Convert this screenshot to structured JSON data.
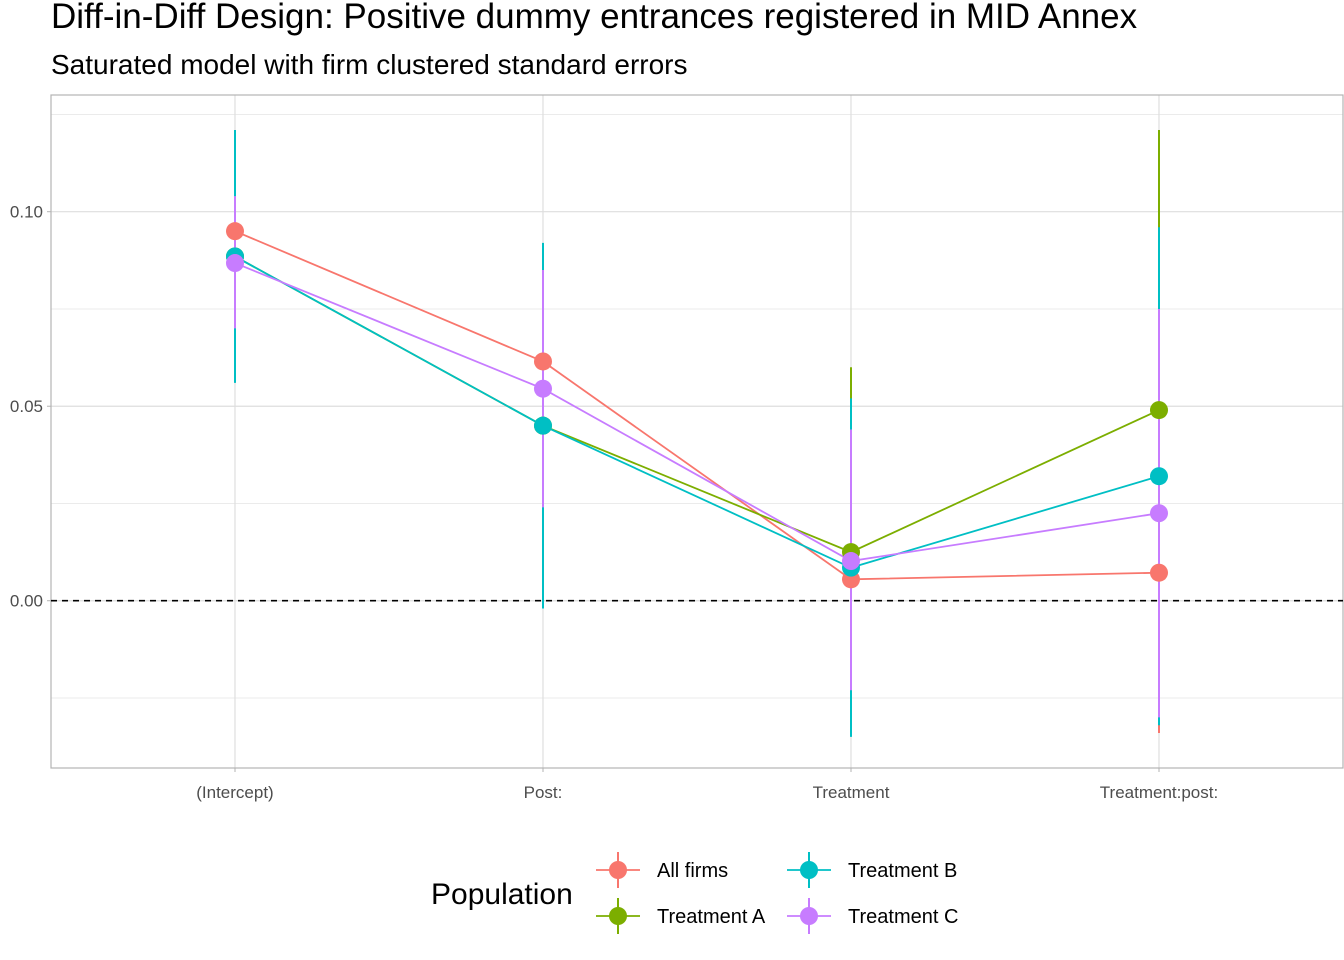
{
  "chart_data": {
    "type": "scatter",
    "title": "Diff-in-Diff Design: Positive dummy entrances registered in MID Annex",
    "subtitle": "Saturated model with firm clustered standard errors",
    "xlabel": "",
    "ylabel": "",
    "categories": [
      "(Intercept)",
      "Post:",
      "Treatment",
      "Treatment:post:"
    ],
    "y_ticks": [
      0.0,
      0.05,
      0.1
    ],
    "y_tick_labels": [
      "0.00",
      "0.05",
      "0.10"
    ],
    "ylim": [
      -0.043,
      0.13
    ],
    "grid": true,
    "reference_line": {
      "y": 0.0,
      "style": "dashed"
    },
    "legend": {
      "title": "Population",
      "position": "bottom"
    },
    "series": [
      {
        "name": "All firms",
        "color": "#F8766D",
        "values": [
          0.095,
          0.0615,
          0.0055,
          0.0072
        ],
        "lower": [
          0.085,
          0.038,
          -0.028,
          -0.034
        ],
        "upper": [
          0.105,
          0.085,
          0.039,
          0.048
        ]
      },
      {
        "name": "Treatment A",
        "color": "#7CAE00",
        "values": [
          0.0885,
          0.045,
          0.0125,
          0.049
        ],
        "lower": [
          0.068,
          0.026,
          -0.033,
          -0.021
        ],
        "upper": [
          0.109,
          0.064,
          0.06,
          0.121
        ]
      },
      {
        "name": "Treatment B",
        "color": "#00BFC4",
        "values": [
          0.0885,
          0.045,
          0.0085,
          0.032
        ],
        "lower": [
          0.056,
          -0.002,
          -0.035,
          -0.032
        ],
        "upper": [
          0.121,
          0.092,
          0.052,
          0.096
        ]
      },
      {
        "name": "Treatment C",
        "color": "#C77CFF",
        "values": [
          0.0868,
          0.0545,
          0.0102,
          0.0225
        ],
        "lower": [
          0.07,
          0.024,
          -0.023,
          -0.03
        ],
        "upper": [
          0.104,
          0.085,
          0.044,
          0.075
        ]
      }
    ]
  }
}
